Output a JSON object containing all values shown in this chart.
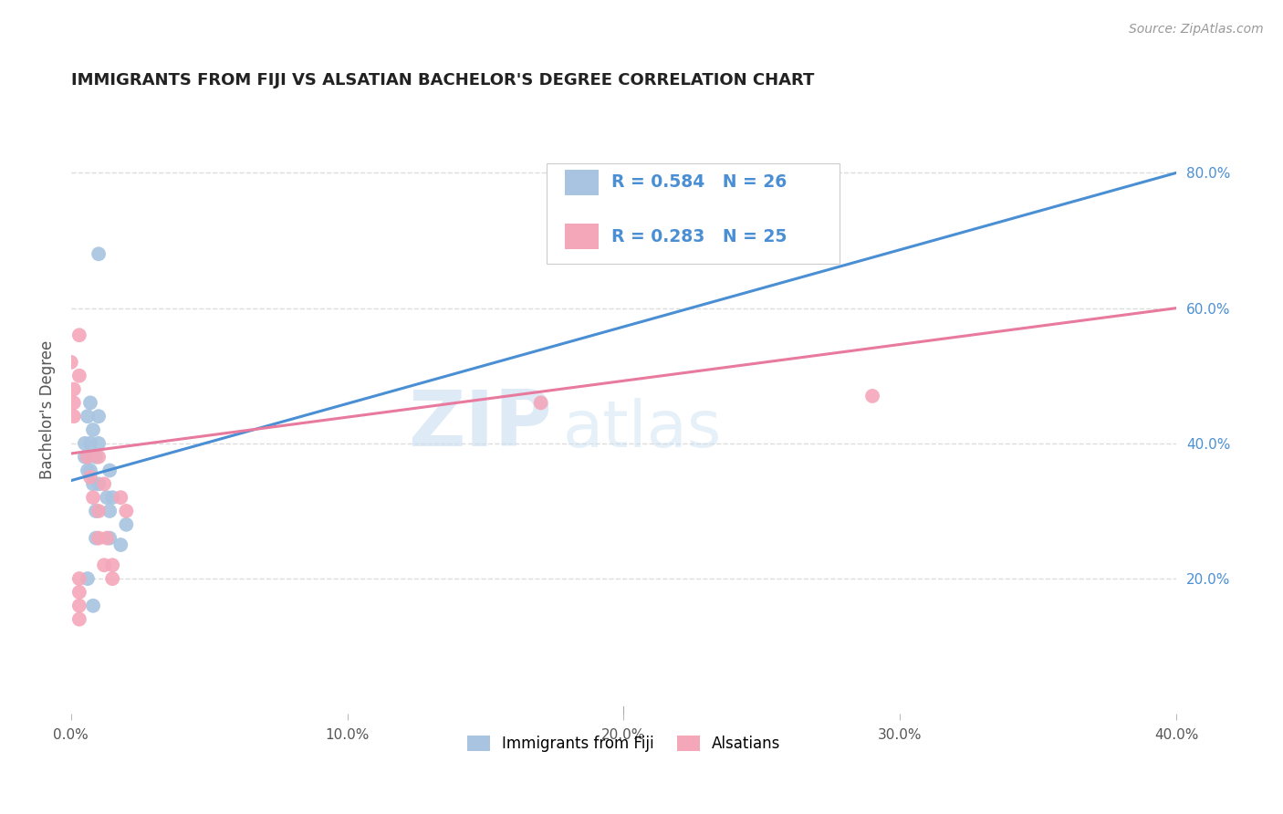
{
  "title": "IMMIGRANTS FROM FIJI VS ALSATIAN BACHELOR'S DEGREE CORRELATION CHART",
  "source": "Source: ZipAtlas.com",
  "ylabel": "Bachelor's Degree",
  "xlim": [
    0.0,
    0.4
  ],
  "ylim": [
    0.0,
    0.9
  ],
  "xtick_labels": [
    "0.0%",
    "10.0%",
    "20.0%",
    "30.0%",
    "40.0%"
  ],
  "xtick_vals": [
    0.0,
    0.1,
    0.2,
    0.3,
    0.4
  ],
  "ytick_right_labels": [
    "20.0%",
    "40.0%",
    "60.0%",
    "80.0%"
  ],
  "ytick_right_vals": [
    0.2,
    0.4,
    0.6,
    0.8
  ],
  "fiji_color": "#a8c4e0",
  "alsatian_color": "#f4a7b9",
  "fiji_line_color": "#4a8fd4",
  "alsatian_line_color": "#e87a9e",
  "watermark_zip": "ZIP",
  "watermark_atlas": "atlas",
  "fiji_scatter_x": [
    0.01,
    0.005,
    0.005,
    0.006,
    0.008,
    0.007,
    0.007,
    0.01,
    0.01,
    0.009,
    0.01,
    0.014,
    0.013,
    0.015,
    0.014,
    0.014,
    0.02,
    0.018,
    0.007,
    0.006,
    0.006,
    0.008,
    0.009,
    0.009,
    0.006,
    0.008
  ],
  "fiji_scatter_y": [
    0.68,
    0.4,
    0.38,
    0.36,
    0.42,
    0.4,
    0.36,
    0.44,
    0.4,
    0.38,
    0.34,
    0.36,
    0.32,
    0.32,
    0.3,
    0.26,
    0.28,
    0.25,
    0.46,
    0.44,
    0.38,
    0.34,
    0.3,
    0.26,
    0.2,
    0.16
  ],
  "alsatian_scatter_x": [
    0.0,
    0.001,
    0.001,
    0.001,
    0.003,
    0.003,
    0.006,
    0.007,
    0.008,
    0.01,
    0.01,
    0.01,
    0.012,
    0.013,
    0.012,
    0.015,
    0.015,
    0.018,
    0.02,
    0.29,
    0.17,
    0.003,
    0.003,
    0.003,
    0.003
  ],
  "alsatian_scatter_y": [
    0.52,
    0.48,
    0.46,
    0.44,
    0.56,
    0.5,
    0.38,
    0.35,
    0.32,
    0.38,
    0.3,
    0.26,
    0.34,
    0.26,
    0.22,
    0.2,
    0.22,
    0.32,
    0.3,
    0.47,
    0.46,
    0.2,
    0.18,
    0.16,
    0.14
  ],
  "fiji_trend_x": [
    0.0,
    0.4
  ],
  "fiji_trend_y": [
    0.345,
    0.8
  ],
  "alsatian_trend_x": [
    0.0,
    0.4
  ],
  "alsatian_trend_y": [
    0.385,
    0.6
  ],
  "background_color": "#ffffff",
  "grid_color": "#dddddd",
  "title_color": "#222222",
  "ylabel_color": "#555555",
  "ytick_color": "#4a8fd4",
  "xtick_color": "#555555",
  "source_color": "#999999",
  "legend_text_color": "#4a8fd4",
  "legend_text_rn_color": "#222222"
}
